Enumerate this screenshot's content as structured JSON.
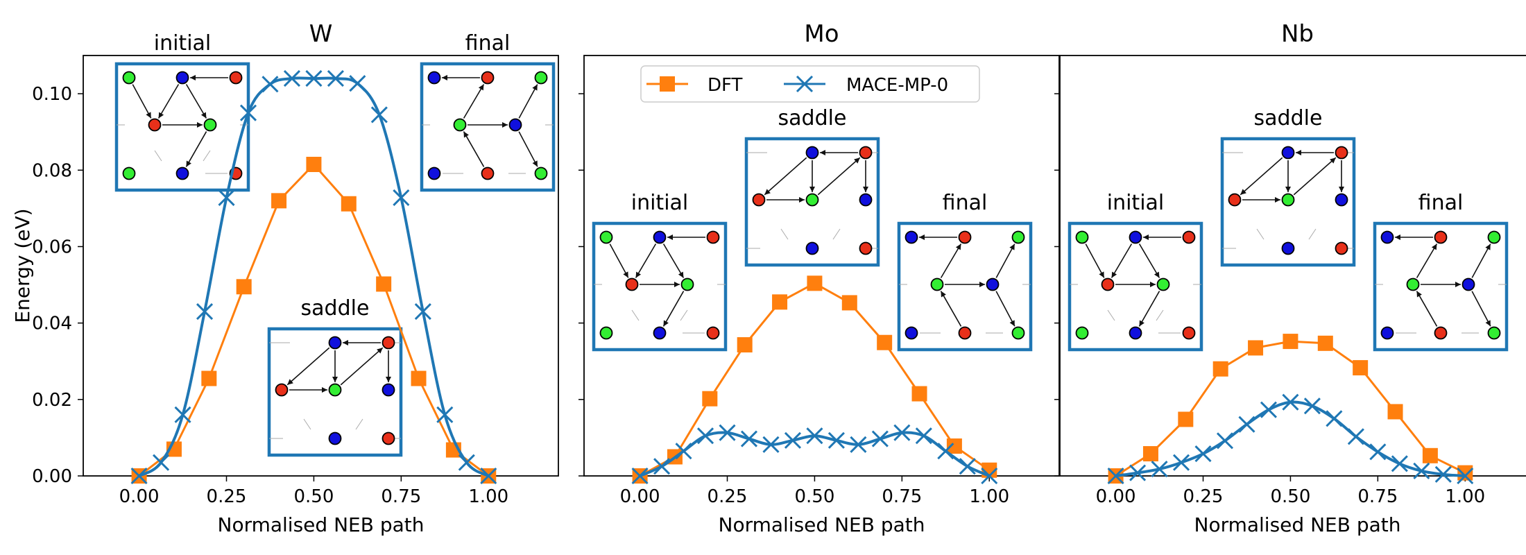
{
  "colors": {
    "dft": "#ff7f0e",
    "mace": "#1f77b4",
    "inset_frame": "#1f77b4",
    "atom_red": "#e8301a",
    "atom_green": "#33ee33",
    "atom_blue": "#1010dd"
  },
  "legend": {
    "dft_label": "DFT",
    "mace_label": "MACE-MP-0",
    "placement": "top-center of middle panel"
  },
  "chart_data": [
    {
      "type": "line",
      "title": "W",
      "xlabel": "Normalised NEB path",
      "ylabel": "Energy (eV)",
      "xlim": [
        -0.16,
        1.2
      ],
      "ylim": [
        0,
        0.11
      ],
      "xticks": [
        "0.00",
        "0.25",
        "0.50",
        "0.75",
        "1.00"
      ],
      "yticks": [
        "0.00",
        "0.02",
        "0.04",
        "0.06",
        "0.08",
        "0.10"
      ],
      "grid": false,
      "series": [
        {
          "name": "DFT",
          "marker": "square",
          "x": [
            0.0,
            0.1,
            0.2,
            0.3,
            0.4,
            0.5,
            0.6,
            0.7,
            0.8,
            0.9,
            1.0
          ],
          "y": [
            0.0,
            0.007,
            0.0255,
            0.0495,
            0.072,
            0.0815,
            0.0712,
            0.0502,
            0.0255,
            0.0068,
            0.0
          ]
        },
        {
          "name": "MACE-MP-0",
          "marker": "x",
          "x": [
            0.0,
            0.0625,
            0.125,
            0.1875,
            0.25,
            0.3125,
            0.375,
            0.4375,
            0.5,
            0.5625,
            0.625,
            0.6875,
            0.75,
            0.8125,
            0.875,
            0.9375,
            1.0
          ],
          "y": [
            0.0,
            0.0035,
            0.016,
            0.043,
            0.0728,
            0.095,
            0.1025,
            0.104,
            0.104,
            0.104,
            0.1027,
            0.0945,
            0.0728,
            0.043,
            0.016,
            0.0035,
            0.0
          ]
        }
      ],
      "insets": [
        {
          "label": "initial",
          "state": "initial"
        },
        {
          "label": "final",
          "state": "final"
        },
        {
          "label": "saddle",
          "state": "saddle"
        }
      ]
    },
    {
      "type": "line",
      "title": "Mo",
      "xlabel": "Normalised NEB path",
      "ylabel": "",
      "xlim": [
        -0.16,
        1.2
      ],
      "ylim": [
        0,
        0.11
      ],
      "xticks": [
        "0.00",
        "0.25",
        "0.50",
        "0.75",
        "1.00"
      ],
      "grid": false,
      "series": [
        {
          "name": "DFT",
          "marker": "square",
          "x": [
            0.0,
            0.1,
            0.2,
            0.3,
            0.4,
            0.5,
            0.6,
            0.7,
            0.8,
            0.9,
            1.0
          ],
          "y": [
            0.0,
            0.005,
            0.0202,
            0.0343,
            0.0455,
            0.0504,
            0.0453,
            0.0349,
            0.0215,
            0.0078,
            0.0015
          ]
        },
        {
          "name": "MACE-MP-0",
          "marker": "x",
          "x": [
            0.0,
            0.0625,
            0.125,
            0.1875,
            0.25,
            0.3125,
            0.375,
            0.4375,
            0.5,
            0.5625,
            0.625,
            0.6875,
            0.75,
            0.8125,
            0.875,
            0.9375,
            1.0
          ],
          "y": [
            0.0,
            0.0025,
            0.0065,
            0.0105,
            0.0113,
            0.0097,
            0.0082,
            0.0093,
            0.0105,
            0.0093,
            0.0082,
            0.0097,
            0.0113,
            0.0105,
            0.0065,
            0.0025,
            0.0
          ]
        }
      ],
      "insets": [
        {
          "label": "saddle",
          "state": "saddle"
        },
        {
          "label": "initial",
          "state": "initial"
        },
        {
          "label": "final",
          "state": "final"
        }
      ]
    },
    {
      "type": "line",
      "title": "Nb",
      "xlabel": "Normalised NEB path",
      "ylabel": "",
      "xlim": [
        -0.16,
        1.2
      ],
      "ylim": [
        0,
        0.11
      ],
      "xticks": [
        "0.00",
        "0.25",
        "0.50",
        "0.75",
        "1.00"
      ],
      "grid": false,
      "series": [
        {
          "name": "DFT",
          "marker": "square",
          "x": [
            0.0,
            0.1,
            0.2,
            0.3,
            0.4,
            0.5,
            0.6,
            0.7,
            0.8,
            0.9,
            1.0
          ],
          "y": [
            0.0,
            0.0058,
            0.0148,
            0.028,
            0.0335,
            0.0352,
            0.0347,
            0.0283,
            0.0168,
            0.0053,
            0.0008
          ]
        },
        {
          "name": "MACE-MP-0",
          "marker": "x",
          "x": [
            0.0,
            0.0625,
            0.125,
            0.1875,
            0.25,
            0.3125,
            0.375,
            0.4375,
            0.5,
            0.5625,
            0.625,
            0.6875,
            0.75,
            0.8125,
            0.875,
            0.9375,
            1.0
          ],
          "y": [
            0.0,
            0.0008,
            0.0018,
            0.0035,
            0.0058,
            0.0092,
            0.0135,
            0.0173,
            0.0193,
            0.0183,
            0.015,
            0.0103,
            0.0063,
            0.0032,
            0.0013,
            0.0004,
            0.0
          ]
        }
      ],
      "insets": [
        {
          "label": "saddle",
          "state": "saddle"
        },
        {
          "label": "initial",
          "state": "initial"
        },
        {
          "label": "final",
          "state": "final"
        }
      ]
    }
  ]
}
